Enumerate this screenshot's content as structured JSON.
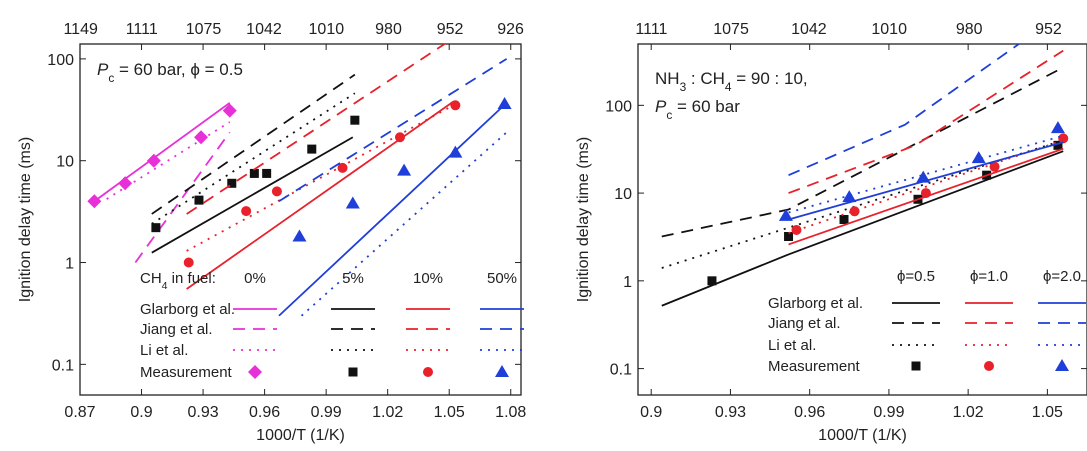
{
  "colors": {
    "magenta": "#e830d8",
    "black": "#111111",
    "red": "#e8212b",
    "blue": "#1f3fd8"
  },
  "chart_data": [
    {
      "type": "line",
      "xlabel": "1000/T (1/K)",
      "ylabel": "Ignition delay time (ms)",
      "yscale": "log",
      "xlim": [
        0.87,
        1.085
      ],
      "ylim": [
        0.05,
        140
      ],
      "xticks": [
        "0.87",
        "0.9",
        "0.93",
        "0.96",
        "0.99",
        "1.02",
        "1.05",
        "1.08"
      ],
      "yticks": [
        "0.1",
        "1",
        "10",
        "100"
      ],
      "top_axis_labels": [
        "1149",
        "1111",
        "1075",
        "1042",
        "1010",
        "980",
        "952",
        "926"
      ],
      "annotation": {
        "line1": "P",
        "sub": "c",
        "line2": " = 60 bar, ϕ = 0.5"
      },
      "legend": {
        "title": "CH",
        "title_sub": "4",
        "title_rest": " in fuel:",
        "columns": [
          "0%",
          "5%",
          "10%",
          "50%"
        ],
        "rows": [
          "Glarborg et al.",
          "Jiang et al.",
          "Li et al.",
          "Measurement"
        ]
      },
      "series": [
        {
          "name": "0%",
          "color": "magenta",
          "marker": "diamond",
          "measurement": {
            "x": [
              0.877,
              0.892,
              0.906,
              0.929,
              0.943
            ],
            "y": [
              4.0,
              6.0,
              10.0,
              17.0,
              31.0
            ]
          },
          "glarborg": {
            "x": [
              0.877,
              0.943
            ],
            "y": [
              4.0,
              37.0
            ]
          },
          "jiang": {
            "x": [
              0.897,
              0.943
            ],
            "y": [
              1.0,
              19.0
            ]
          },
          "li": {
            "x": [
              0.883,
              0.943
            ],
            "y": [
              4.2,
              24.0
            ]
          }
        },
        {
          "name": "5%",
          "color": "black",
          "marker": "square",
          "measurement": {
            "x": [
              0.907,
              0.928,
              0.944,
              0.955,
              0.961,
              0.983,
              1.004
            ],
            "y": [
              2.2,
              4.1,
              6.0,
              7.5,
              7.5,
              13.0,
              25.0
            ]
          },
          "glarborg": {
            "x": [
              0.905,
              1.003
            ],
            "y": [
              1.25,
              17.0
            ]
          },
          "jiang": {
            "x": [
              0.905,
              1.004
            ],
            "y": [
              3.0,
              70.0
            ]
          },
          "li": {
            "x": [
              0.905,
              1.004
            ],
            "y": [
              2.4,
              46.0
            ]
          }
        },
        {
          "name": "10%",
          "color": "red",
          "marker": "circle",
          "measurement": {
            "x": [
              0.923,
              0.951,
              0.966,
              0.998,
              1.026,
              1.053
            ],
            "y": [
              1.0,
              3.2,
              5.0,
              8.5,
              17.0,
              35.0
            ]
          },
          "glarborg": {
            "x": [
              0.922,
              1.052
            ],
            "y": [
              0.55,
              38.0
            ]
          },
          "jiang": {
            "x": [
              0.922,
              1.05
            ],
            "y": [
              3.0,
              150.0
            ]
          },
          "li": {
            "x": [
              0.922,
              1.052
            ],
            "y": [
              1.3,
              35.0
            ]
          }
        },
        {
          "name": "50%",
          "color": "blue",
          "marker": "triangle",
          "measurement": {
            "x": [
              0.977,
              1.003,
              1.028,
              1.053,
              1.077
            ],
            "y": [
              1.8,
              3.8,
              8.0,
              12.0,
              36.0
            ]
          },
          "glarborg": {
            "x": [
              0.967,
              1.078
            ],
            "y": [
              0.3,
              37.0
            ]
          },
          "jiang": {
            "x": [
              0.967,
              1.078
            ],
            "y": [
              4.0,
              100.0
            ]
          },
          "li": {
            "x": [
              0.978,
              1.078
            ],
            "y": [
              0.3,
              19.0
            ]
          }
        }
      ]
    },
    {
      "type": "line",
      "xlabel": "1000/T (1/K)",
      "ylabel": "Ignition delay time (ms)",
      "yscale": "log",
      "xlim": [
        0.895,
        1.065
      ],
      "ylim": [
        0.05,
        500
      ],
      "xticks": [
        "0.9",
        "0.93",
        "0.96",
        "0.99",
        "1.02",
        "1.05"
      ],
      "yticks": [
        "0.1",
        "1",
        "10",
        "100"
      ],
      "top_axis_labels": [
        "1111",
        "1075",
        "1042",
        "1010",
        "980",
        "952"
      ],
      "annotation": {
        "line1_pre": "NH",
        "line1_sub": "3",
        "line1_mid": " : CH",
        "line1_sub2": "4",
        "line1_post": " = 90 : 10,",
        "line2": "P",
        "line2_sub": "c",
        "line2_post": " = 60 bar"
      },
      "legend": {
        "columns": [
          "ϕ=0.5",
          "ϕ=1.0",
          "ϕ=2.0"
        ],
        "rows": [
          "Glarborg et al.",
          "Jiang et al.",
          "Li et al.",
          "Measurement"
        ]
      },
      "series": [
        {
          "name": "ϕ=0.5",
          "color": "black",
          "marker": "square",
          "measurement": {
            "x": [
              0.923,
              0.952,
              0.973,
              1.001,
              1.027,
              1.054
            ],
            "y": [
              1.0,
              3.2,
              5.0,
              8.5,
              16.0,
              35.0
            ]
          },
          "glarborg": {
            "x": [
              0.904,
              0.952,
              1.056
            ],
            "y": [
              0.52,
              2.0,
              30.0
            ]
          },
          "jiang": {
            "x": [
              0.904,
              0.952,
              1.056
            ],
            "y": [
              3.2,
              6.5,
              270.0
            ]
          },
          "li": {
            "x": [
              0.904,
              1.056
            ],
            "y": [
              1.4,
              40.0
            ]
          }
        },
        {
          "name": "ϕ=1.0",
          "color": "red",
          "marker": "circle",
          "measurement": {
            "x": [
              0.955,
              0.977,
              1.004,
              1.03,
              1.056
            ],
            "y": [
              3.8,
              6.2,
              10.0,
              20.0,
              42.0
            ]
          },
          "glarborg": {
            "x": [
              0.952,
              1.056
            ],
            "y": [
              2.6,
              32.0
            ]
          },
          "jiang": {
            "x": [
              0.952,
              1.0,
              1.056
            ],
            "y": [
              10.0,
              35.0,
              420.0
            ]
          },
          "li": {
            "x": [
              0.952,
              1.056
            ],
            "y": [
              3.5,
              40.0
            ]
          }
        },
        {
          "name": "ϕ=2.0",
          "color": "blue",
          "marker": "triangle",
          "measurement": {
            "x": [
              0.951,
              0.975,
              1.003,
              1.024,
              1.054
            ],
            "y": [
              5.5,
              9.0,
              15.0,
              25.0,
              55.0
            ]
          },
          "glarborg": {
            "x": [
              0.952,
              1.056
            ],
            "y": [
              5.0,
              38.0
            ]
          },
          "jiang": {
            "x": [
              0.952,
              0.996,
              1.04
            ],
            "y": [
              16.0,
              60.0,
              520.0
            ]
          },
          "li": {
            "x": [
              0.952,
              1.056
            ],
            "y": [
              6.0,
              45.0
            ]
          }
        }
      ]
    }
  ]
}
